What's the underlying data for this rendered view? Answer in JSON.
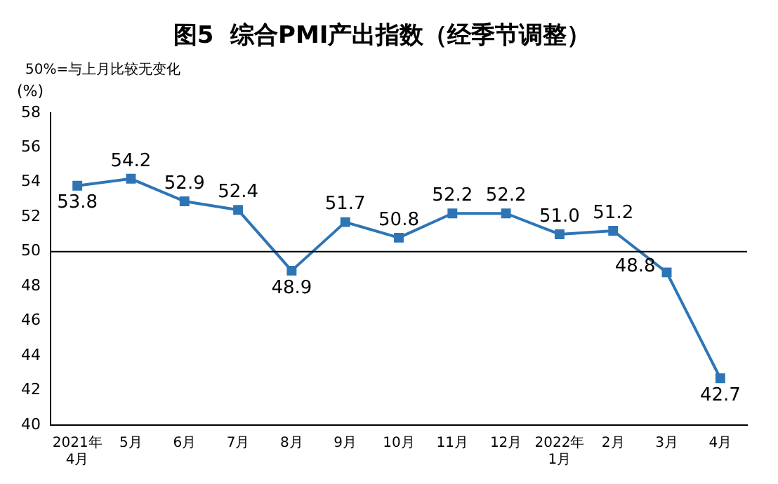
{
  "chart_data": {
    "type": "line",
    "title": "图5  综合PMI产出指数（经季节调整）",
    "ylabel": "(%)",
    "annotations": [
      "50%=与上月比较无变化"
    ],
    "categories": [
      "2021年\n4月",
      "5月",
      "6月",
      "7月",
      "8月",
      "9月",
      "10月",
      "11月",
      "12月",
      "2022年\n1月",
      "2月",
      "3月",
      "4月"
    ],
    "series": [
      {
        "color": "#2e75b6",
        "values": [
          53.8,
          54.2,
          52.9,
          52.4,
          48.9,
          51.7,
          50.8,
          52.2,
          52.2,
          51.0,
          51.2,
          48.8,
          42.7
        ],
        "value_labels": [
          "53.8",
          "54.2",
          "52.9",
          "52.4",
          "48.9",
          "51.7",
          "50.8",
          "52.2",
          "52.2",
          "51.0",
          "51.2",
          "48.8",
          "42.7"
        ]
      }
    ],
    "ylim": [
      40,
      58
    ],
    "yticks": [
      40,
      42,
      44,
      46,
      48,
      50,
      52,
      54,
      56,
      58
    ],
    "grid": false,
    "legend": false,
    "marker": "square",
    "line_style": "solid",
    "ref_lines": [
      {
        "axis": "y",
        "value": 50,
        "color": "#000000"
      }
    ]
  }
}
